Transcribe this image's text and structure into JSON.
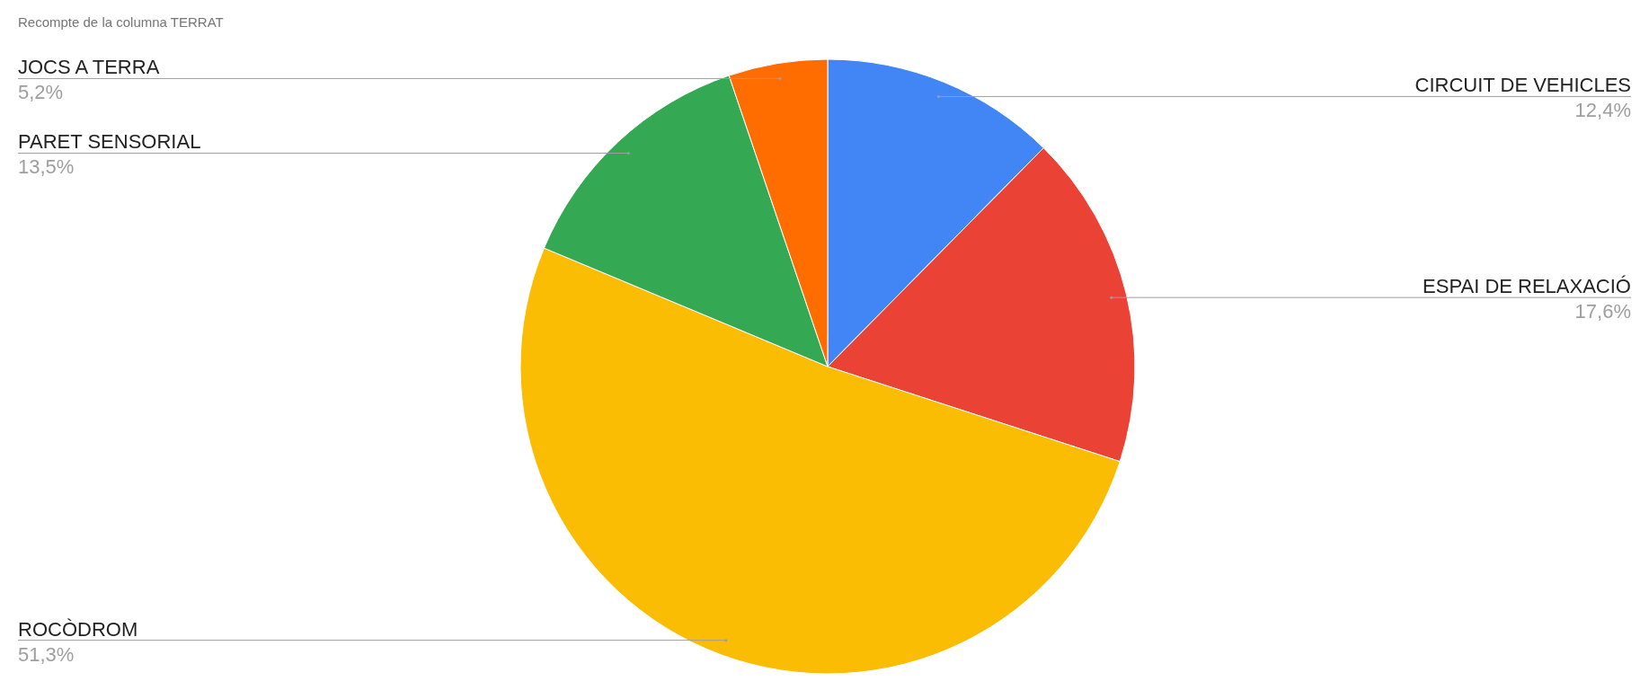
{
  "chart_data": {
    "type": "pie",
    "title": "Recompte de la columna TERRAT",
    "categories": [
      "CIRCUIT DE VEHICLES",
      "ESPAI DE RELAXACIÓ",
      "ROCÒDROM",
      "PARET SENSORIAL",
      "JOCS A TERRA"
    ],
    "values": [
      12.4,
      17.6,
      51.3,
      13.5,
      5.2
    ],
    "colors": [
      "#4285f4",
      "#ea4335",
      "#fbbc04",
      "#34a853",
      "#ff6d01"
    ],
    "value_labels": [
      "12,4%",
      "17,6%",
      "51,3%",
      "13,5%",
      "5,2%"
    ]
  }
}
